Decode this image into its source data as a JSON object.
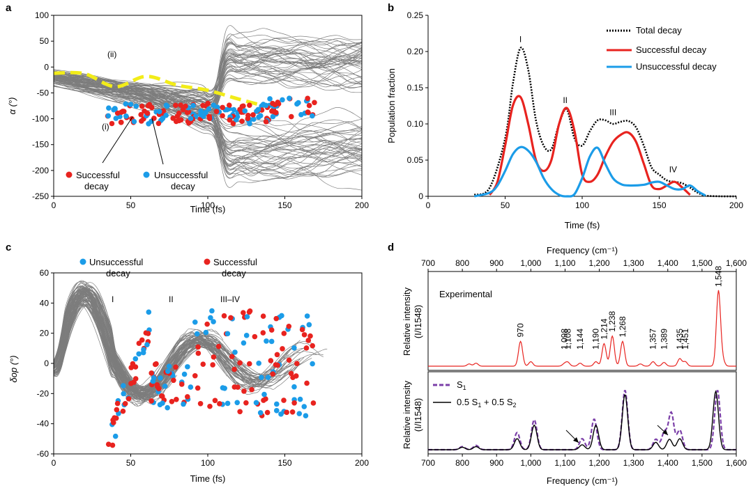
{
  "chart_data": [
    {
      "panel": "a",
      "type": "line",
      "xlabel": "Time (fs)",
      "ylabel": "α (°)",
      "xlim": [
        0,
        200
      ],
      "ylim": [
        -250,
        100
      ],
      "xticks": [
        "0",
        "50",
        "100",
        "150",
        "200"
      ],
      "yticks": [
        "100",
        "50",
        "0",
        "-50",
        "-100",
        "-150",
        "-200",
        "-250"
      ],
      "mean_trajectory": {
        "color": "#f2ec19",
        "x": [
          0,
          20,
          40,
          60,
          80,
          100,
          120,
          140
        ],
        "y": [
          -12,
          -13,
          -38,
          -18,
          -35,
          -45,
          -62,
          -78
        ]
      },
      "annotations": [
        "(ii)",
        "(i)"
      ],
      "legend": [
        {
          "label": "Successful\ndecay",
          "color": "#e8231f"
        },
        {
          "label": "Unsuccessful\ndecay",
          "color": "#1b9ce8"
        }
      ]
    },
    {
      "panel": "b",
      "type": "line",
      "xlabel": "Time (fs)",
      "ylabel": "Population fraction",
      "xlim": [
        0,
        200
      ],
      "ylim": [
        0,
        0.25
      ],
      "xticks": [
        "0",
        "50",
        "100",
        "150",
        "200"
      ],
      "yticks": [
        "0",
        "0.05",
        "0.10",
        "0.15",
        "0.20",
        "0.25"
      ],
      "series": [
        {
          "name": "Total decay",
          "color": "#000000",
          "style": "dotted",
          "x": [
            30,
            40,
            50,
            55,
            60,
            65,
            70,
            75,
            80,
            85,
            90,
            95,
            100,
            105,
            110,
            115,
            120,
            125,
            130,
            135,
            140,
            145,
            150,
            155,
            160,
            165,
            170,
            175,
            180,
            190,
            200
          ],
          "y": [
            0.002,
            0.012,
            0.08,
            0.155,
            0.205,
            0.175,
            0.105,
            0.07,
            0.065,
            0.1,
            0.12,
            0.08,
            0.07,
            0.09,
            0.105,
            0.105,
            0.1,
            0.103,
            0.104,
            0.095,
            0.07,
            0.04,
            0.03,
            0.022,
            0.02,
            0.018,
            0.012,
            0.005,
            0.001,
            0,
            0
          ]
        },
        {
          "name": "Successful decay",
          "color": "#e8231f",
          "style": "solid",
          "x": [
            40,
            45,
            50,
            55,
            60,
            65,
            70,
            75,
            80,
            85,
            90,
            95,
            100,
            105,
            110,
            115,
            120,
            125,
            130,
            135,
            140,
            145,
            150,
            155,
            160,
            165,
            170
          ],
          "y": [
            0.002,
            0.02,
            0.07,
            0.125,
            0.137,
            0.1,
            0.05,
            0.035,
            0.05,
            0.1,
            0.122,
            0.09,
            0.03,
            0.02,
            0.03,
            0.055,
            0.075,
            0.085,
            0.088,
            0.075,
            0.045,
            0.015,
            0.01,
            0.015,
            0.02,
            0.012,
            0.002
          ]
        },
        {
          "name": "Unsuccessful decay",
          "color": "#1b9ce8",
          "style": "solid",
          "x": [
            30,
            40,
            45,
            50,
            55,
            60,
            65,
            70,
            75,
            80,
            85,
            90,
            95,
            100,
            105,
            110,
            115,
            120,
            125,
            130,
            140,
            145,
            150,
            155,
            160,
            165,
            170,
            175,
            180
          ],
          "y": [
            0,
            0.005,
            0.015,
            0.035,
            0.058,
            0.068,
            0.063,
            0.048,
            0.025,
            0.01,
            0.002,
            0,
            0.003,
            0.025,
            0.055,
            0.067,
            0.045,
            0.025,
            0.017,
            0.015,
            0.016,
            0.019,
            0.02,
            0.015,
            0.01,
            0.01,
            0.015,
            0.007,
            0.001
          ]
        }
      ],
      "peak_labels": [
        {
          "text": "I",
          "x": 60,
          "y": 0.213
        },
        {
          "text": "II",
          "x": 89,
          "y": 0.129
        },
        {
          "text": "III",
          "x": 120,
          "y": 0.112
        },
        {
          "text": "IV",
          "x": 159,
          "y": 0.033
        }
      ]
    },
    {
      "panel": "c",
      "type": "line",
      "xlabel": "Time (fs)",
      "ylabel": "δop (°)",
      "xlim": [
        0,
        200
      ],
      "ylim": [
        -60,
        60
      ],
      "xticks": [
        "0",
        "50",
        "100",
        "150",
        "200"
      ],
      "yticks": [
        "60",
        "40",
        "20",
        "0",
        "-20",
        "-40",
        "-60"
      ],
      "region_labels": [
        "I",
        "II",
        "III–IV"
      ],
      "legend": [
        {
          "label": "Unsuccessful\ndecay",
          "color": "#1b9ce8"
        },
        {
          "label": "Successful\ndecay",
          "color": "#e8231f"
        }
      ]
    },
    {
      "panel": "d",
      "type": "line",
      "xlabel": "Frequency (cm⁻¹)",
      "top_xlabel": "Frequency (cm⁻¹)",
      "ylabel": "Relative intensity (I/I1548)",
      "xlim": [
        700,
        1600
      ],
      "xticks": [
        "700",
        "800",
        "900",
        "1,000",
        "1,100",
        "1,200",
        "1,300",
        "1,400",
        "1,500",
        "1,600"
      ],
      "experimental": {
        "title": "Experimental",
        "color": "#e8231f",
        "peaks": [
          {
            "freq": 970,
            "label": "970",
            "height": 0.33
          },
          {
            "freq": 1108,
            "label": "1,108",
            "height": 0.05
          },
          {
            "freq": 1098,
            "label": "1,098",
            "height": 0.03
          },
          {
            "freq": 1144,
            "label": "1,144",
            "height": 0.04
          },
          {
            "freq": 1190,
            "label": "1,190",
            "height": 0.06
          },
          {
            "freq": 1214,
            "label": "1,214",
            "height": 0.3
          },
          {
            "freq": 1238,
            "label": "1,238",
            "height": 0.4
          },
          {
            "freq": 1268,
            "label": "1,268",
            "height": 0.33
          },
          {
            "freq": 1357,
            "label": "1,357",
            "height": 0.06
          },
          {
            "freq": 1389,
            "label": "1,389",
            "height": 0.05
          },
          {
            "freq": 1435,
            "label": "1,435",
            "height": 0.1
          },
          {
            "freq": 1451,
            "label": "1,451",
            "height": 0.06
          },
          {
            "freq": 1548,
            "label": "1,548",
            "height": 1.0
          }
        ]
      },
      "series": [
        {
          "name": "S1",
          "label_main": "S",
          "label_sub": "1",
          "color": "#7b3fa8",
          "style": "dashed",
          "peaks": [
            [
              800,
              0.05
            ],
            [
              840,
              0.07
            ],
            [
              960,
              0.28
            ],
            [
              1010,
              0.49
            ],
            [
              1150,
              0.18
            ],
            [
              1185,
              0.5
            ],
            [
              1275,
              0.97
            ],
            [
              1365,
              0.17
            ],
            [
              1390,
              0.28
            ],
            [
              1410,
              0.6
            ],
            [
              1435,
              0.32
            ],
            [
              1545,
              0.97
            ]
          ]
        },
        {
          "name": "0.5 S1 + 0.5 S2",
          "label_main": "0.5 S",
          "label_sub1": "1",
          "label_mid": " + 0.5 S",
          "label_sub2": "2",
          "color": "#000000",
          "style": "solid",
          "peaks": [
            [
              800,
              0.04
            ],
            [
              840,
              0.05
            ],
            [
              960,
              0.18
            ],
            [
              1010,
              0.4
            ],
            [
              1150,
              0.08
            ],
            [
              1190,
              0.4
            ],
            [
              1275,
              0.9
            ],
            [
              1365,
              0.12
            ],
            [
              1405,
              0.17
            ],
            [
              1435,
              0.18
            ],
            [
              1540,
              0.95
            ]
          ]
        }
      ]
    }
  ]
}
